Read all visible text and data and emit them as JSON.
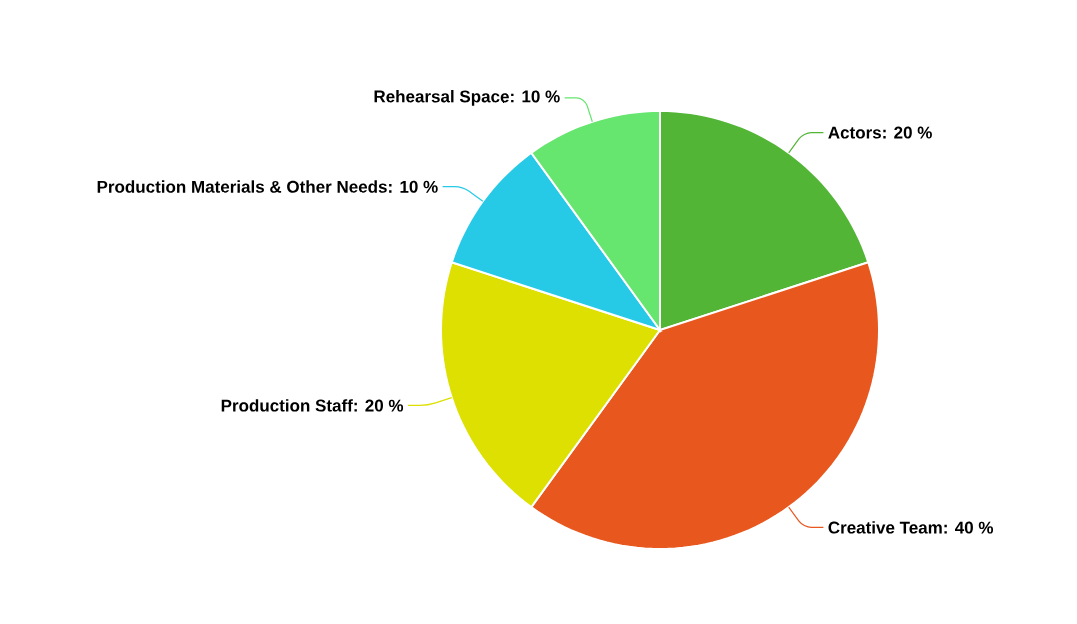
{
  "chart_data": {
    "type": "pie",
    "categories": [
      "Actors",
      "Creative Team",
      "Production Staff",
      "Production Materials & Other Needs",
      "Rehearsal Space"
    ],
    "values": [
      20,
      40,
      20,
      10,
      10
    ],
    "value_labels": [
      ": 20 %",
      ": 40 %",
      ": 20 %",
      ": 10 %",
      ": 10 %"
    ],
    "colors": [
      "#52b535",
      "#e8571e",
      "#dde000",
      "#26c9e6",
      "#66e56f"
    ]
  }
}
